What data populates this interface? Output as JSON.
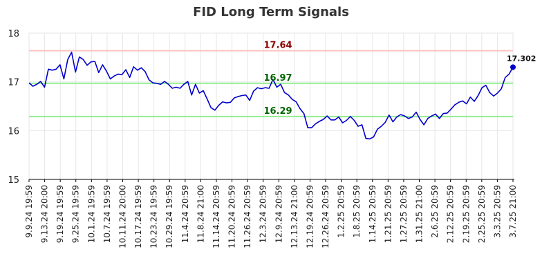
{
  "chart_data": {
    "type": "line",
    "title": "FID Long Term Signals",
    "xlabel": "",
    "ylabel": "",
    "ylim": [
      15,
      18
    ],
    "y_ticks": [
      15,
      16,
      17,
      18
    ],
    "grid": true,
    "x_tick_labels": [
      "9.9.24 19:59",
      "9.13.24 20:00",
      "9.19.24 19:59",
      "9.25.24 19:59",
      "10.1.24 19:59",
      "10.7.24 19:59",
      "10.11.24 20:00",
      "10.17.24 19:59",
      "10.23.24 19:59",
      "10.29.24 19:59",
      "11.4.24 20:59",
      "11.8.24 21:00",
      "11.14.24 20:59",
      "11.20.24 20:59",
      "11.26.24 20:59",
      "12.3.24 20:59",
      "12.9.24 20:59",
      "12.13.24 21:00",
      "12.19.24 20:59",
      "12.26.24 20:59",
      "1.2.25 20:59",
      "1.8.25 20:59",
      "1.14.25 20:59",
      "1.21.25 20:59",
      "1.27.25 20:59",
      "1.31.25 21:00",
      "2.6.25 20:59",
      "2.12.25 20:59",
      "2.19.25 20:59",
      "2.25.25 20:59",
      "3.3.25 20:59",
      "3.7.25 21:00"
    ],
    "series": [
      {
        "color": "#0000cc",
        "values": [
          16.98,
          16.91,
          16.95,
          17.01,
          16.89,
          17.26,
          17.24,
          17.26,
          17.35,
          17.06,
          17.46,
          17.61,
          17.2,
          17.51,
          17.46,
          17.34,
          17.41,
          17.42,
          17.19,
          17.35,
          17.22,
          17.06,
          17.12,
          17.16,
          17.15,
          17.25,
          17.09,
          17.31,
          17.24,
          17.29,
          17.21,
          17.04,
          16.98,
          16.97,
          16.95,
          17.01,
          16.95,
          16.87,
          16.89,
          16.87,
          16.95,
          17.01,
          16.73,
          16.95,
          16.77,
          16.82,
          16.65,
          16.47,
          16.42,
          16.52,
          16.59,
          16.57,
          16.58,
          16.67,
          16.7,
          16.72,
          16.73,
          16.62,
          16.81,
          16.88,
          16.86,
          16.88,
          16.87,
          17.05,
          16.89,
          16.95,
          16.78,
          16.73,
          16.64,
          16.59,
          16.45,
          16.35,
          16.06,
          16.06,
          16.14,
          16.19,
          16.23,
          16.3,
          16.22,
          16.22,
          16.28,
          16.16,
          16.21,
          16.29,
          16.21,
          16.09,
          16.12,
          15.84,
          15.83,
          15.87,
          16.03,
          16.09,
          16.17,
          16.32,
          16.18,
          16.28,
          16.33,
          16.3,
          16.25,
          16.28,
          16.38,
          16.23,
          16.12,
          16.25,
          16.3,
          16.34,
          16.25,
          16.35,
          16.36,
          16.44,
          16.53,
          16.58,
          16.61,
          16.55,
          16.69,
          16.6,
          16.72,
          16.88,
          16.93,
          16.78,
          16.71,
          16.77,
          16.86,
          17.09,
          17.16,
          17.302
        ]
      }
    ],
    "last_value_label": "17.302",
    "levels": [
      {
        "value": 17.64,
        "label": "17.64",
        "line_color": "#ffc0c0",
        "text_color": "#8b0000"
      },
      {
        "value": 16.97,
        "label": "16.97",
        "line_color": "#90ee90",
        "text_color": "#006400"
      },
      {
        "value": 16.29,
        "label": "16.29",
        "line_color": "#90ee90",
        "text_color": "#006400"
      }
    ]
  }
}
